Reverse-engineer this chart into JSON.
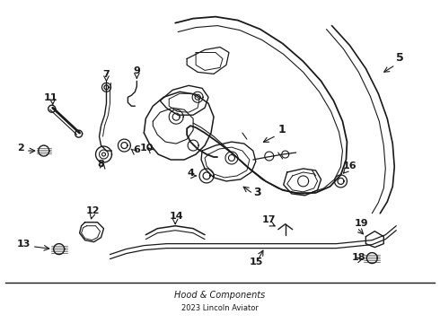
{
  "bg_color": "#ffffff",
  "line_color": "#1a1a1a",
  "label_color": "#000000",
  "figsize": [
    4.9,
    3.6
  ],
  "dpi": 100,
  "bottom_text1": "Hood & Components",
  "bottom_text2": "2023 Lincoln Aviator"
}
